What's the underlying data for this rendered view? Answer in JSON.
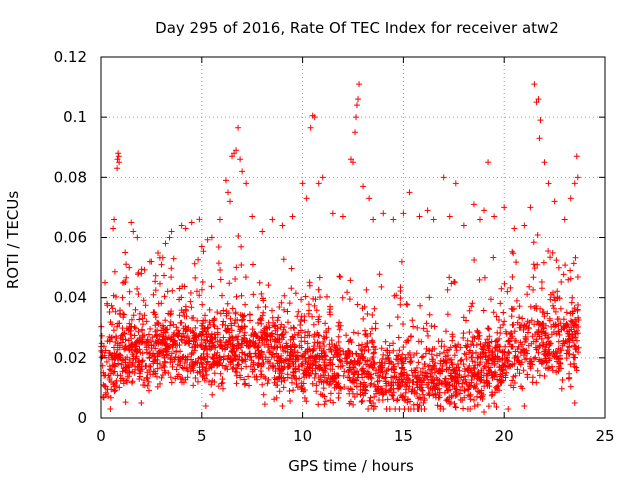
{
  "chart_data": {
    "type": "scatter",
    "title": "Day 295 of 2016, Rate Of TEC Index for receiver atw2",
    "xlabel": "GPS time / hours",
    "ylabel": "ROTI / TECUs",
    "xlim": [
      0,
      25
    ],
    "ylim": [
      0,
      0.12
    ],
    "xticks": [
      0,
      5,
      10,
      15,
      20,
      25
    ],
    "yticks": [
      0,
      0.02,
      0.04,
      0.06,
      0.08,
      0.1,
      0.12
    ],
    "xtick_labels": [
      "0",
      "5",
      "10",
      "15",
      "20",
      "25"
    ],
    "ytick_labels": [
      "0",
      "0.02",
      "0.04",
      "0.06",
      "0.08",
      "0.1",
      "0.12"
    ],
    "grid": true,
    "marker": "+",
    "series_color": "#ff0000",
    "data_range_x": [
      0,
      23.7
    ],
    "series": [
      {
        "name": "ROTI",
        "points": [
          [
            0.1,
            0.007
          ],
          [
            0.2,
            0.045
          ],
          [
            0.3,
            0.038
          ],
          [
            0.5,
            0.012
          ],
          [
            0.6,
            0.063
          ],
          [
            0.65,
            0.066
          ],
          [
            0.8,
            0.083
          ],
          [
            0.82,
            0.086
          ],
          [
            0.85,
            0.088
          ],
          [
            0.88,
            0.087
          ],
          [
            0.9,
            0.085
          ],
          [
            1.2,
            0.055
          ],
          [
            1.4,
            0.05
          ],
          [
            1.5,
            0.065
          ],
          [
            1.6,
            0.062
          ],
          [
            1.8,
            0.06
          ],
          [
            2.0,
            0.048
          ],
          [
            2.5,
            0.052
          ],
          [
            3.0,
            0.051
          ],
          [
            3.2,
            0.058
          ],
          [
            3.4,
            0.06
          ],
          [
            3.5,
            0.062
          ],
          [
            4.0,
            0.064
          ],
          [
            4.2,
            0.063
          ],
          [
            4.5,
            0.065
          ],
          [
            5.0,
            0.057
          ],
          [
            5.5,
            0.06
          ],
          [
            5.9,
            0.066
          ],
          [
            6.2,
            0.079
          ],
          [
            6.3,
            0.075
          ],
          [
            6.4,
            0.072
          ],
          [
            6.5,
            0.087
          ],
          [
            6.6,
            0.088
          ],
          [
            6.7,
            0.089
          ],
          [
            6.8,
            0.0965
          ],
          [
            6.9,
            0.086
          ],
          [
            7.0,
            0.082
          ],
          [
            7.2,
            0.078
          ],
          [
            7.5,
            0.067
          ],
          [
            8.0,
            0.062
          ],
          [
            8.5,
            0.066
          ],
          [
            9.0,
            0.064
          ],
          [
            9.5,
            0.067
          ],
          [
            10.0,
            0.078
          ],
          [
            10.2,
            0.073
          ],
          [
            10.4,
            0.0965
          ],
          [
            10.5,
            0.1005
          ],
          [
            10.6,
            0.1
          ],
          [
            10.8,
            0.078
          ],
          [
            11.0,
            0.08
          ],
          [
            11.5,
            0.068
          ],
          [
            12.0,
            0.067
          ],
          [
            12.4,
            0.086
          ],
          [
            12.5,
            0.085
          ],
          [
            12.6,
            0.095
          ],
          [
            12.65,
            0.1
          ],
          [
            12.7,
            0.104
          ],
          [
            12.75,
            0.106
          ],
          [
            12.8,
            0.111
          ],
          [
            13.0,
            0.077
          ],
          [
            13.3,
            0.073
          ],
          [
            13.5,
            0.066
          ],
          [
            14.0,
            0.068
          ],
          [
            14.5,
            0.066
          ],
          [
            15.0,
            0.068
          ],
          [
            15.3,
            0.075
          ],
          [
            15.8,
            0.067
          ],
          [
            16.2,
            0.069
          ],
          [
            16.5,
            0.066
          ],
          [
            17.0,
            0.08
          ],
          [
            17.3,
            0.067
          ],
          [
            17.6,
            0.078
          ],
          [
            18.0,
            0.064
          ],
          [
            18.5,
            0.071
          ],
          [
            18.8,
            0.066
          ],
          [
            19.0,
            0.069
          ],
          [
            19.2,
            0.085
          ],
          [
            19.5,
            0.067
          ],
          [
            20.0,
            0.07
          ],
          [
            20.5,
            0.063
          ],
          [
            21.0,
            0.064
          ],
          [
            21.3,
            0.07
          ],
          [
            21.5,
            0.111
          ],
          [
            21.6,
            0.105
          ],
          [
            21.7,
            0.106
          ],
          [
            21.75,
            0.093
          ],
          [
            21.8,
            0.099
          ],
          [
            22.0,
            0.085
          ],
          [
            22.2,
            0.078
          ],
          [
            22.5,
            0.072
          ],
          [
            23.0,
            0.066
          ],
          [
            23.3,
            0.073
          ],
          [
            23.5,
            0.078
          ],
          [
            23.6,
            0.087
          ],
          [
            23.65,
            0.08
          ],
          [
            2.0,
            0.005
          ],
          [
            5.2,
            0.004
          ],
          [
            9.0,
            0.004
          ],
          [
            13.5,
            0.005
          ],
          [
            16.0,
            0.005
          ],
          [
            18.2,
            0.003
          ],
          [
            19.0,
            0.002
          ],
          [
            20.2,
            0.003
          ],
          [
            21.0,
            0.004
          ],
          [
            23.5,
            0.005
          ]
        ]
      }
    ]
  }
}
